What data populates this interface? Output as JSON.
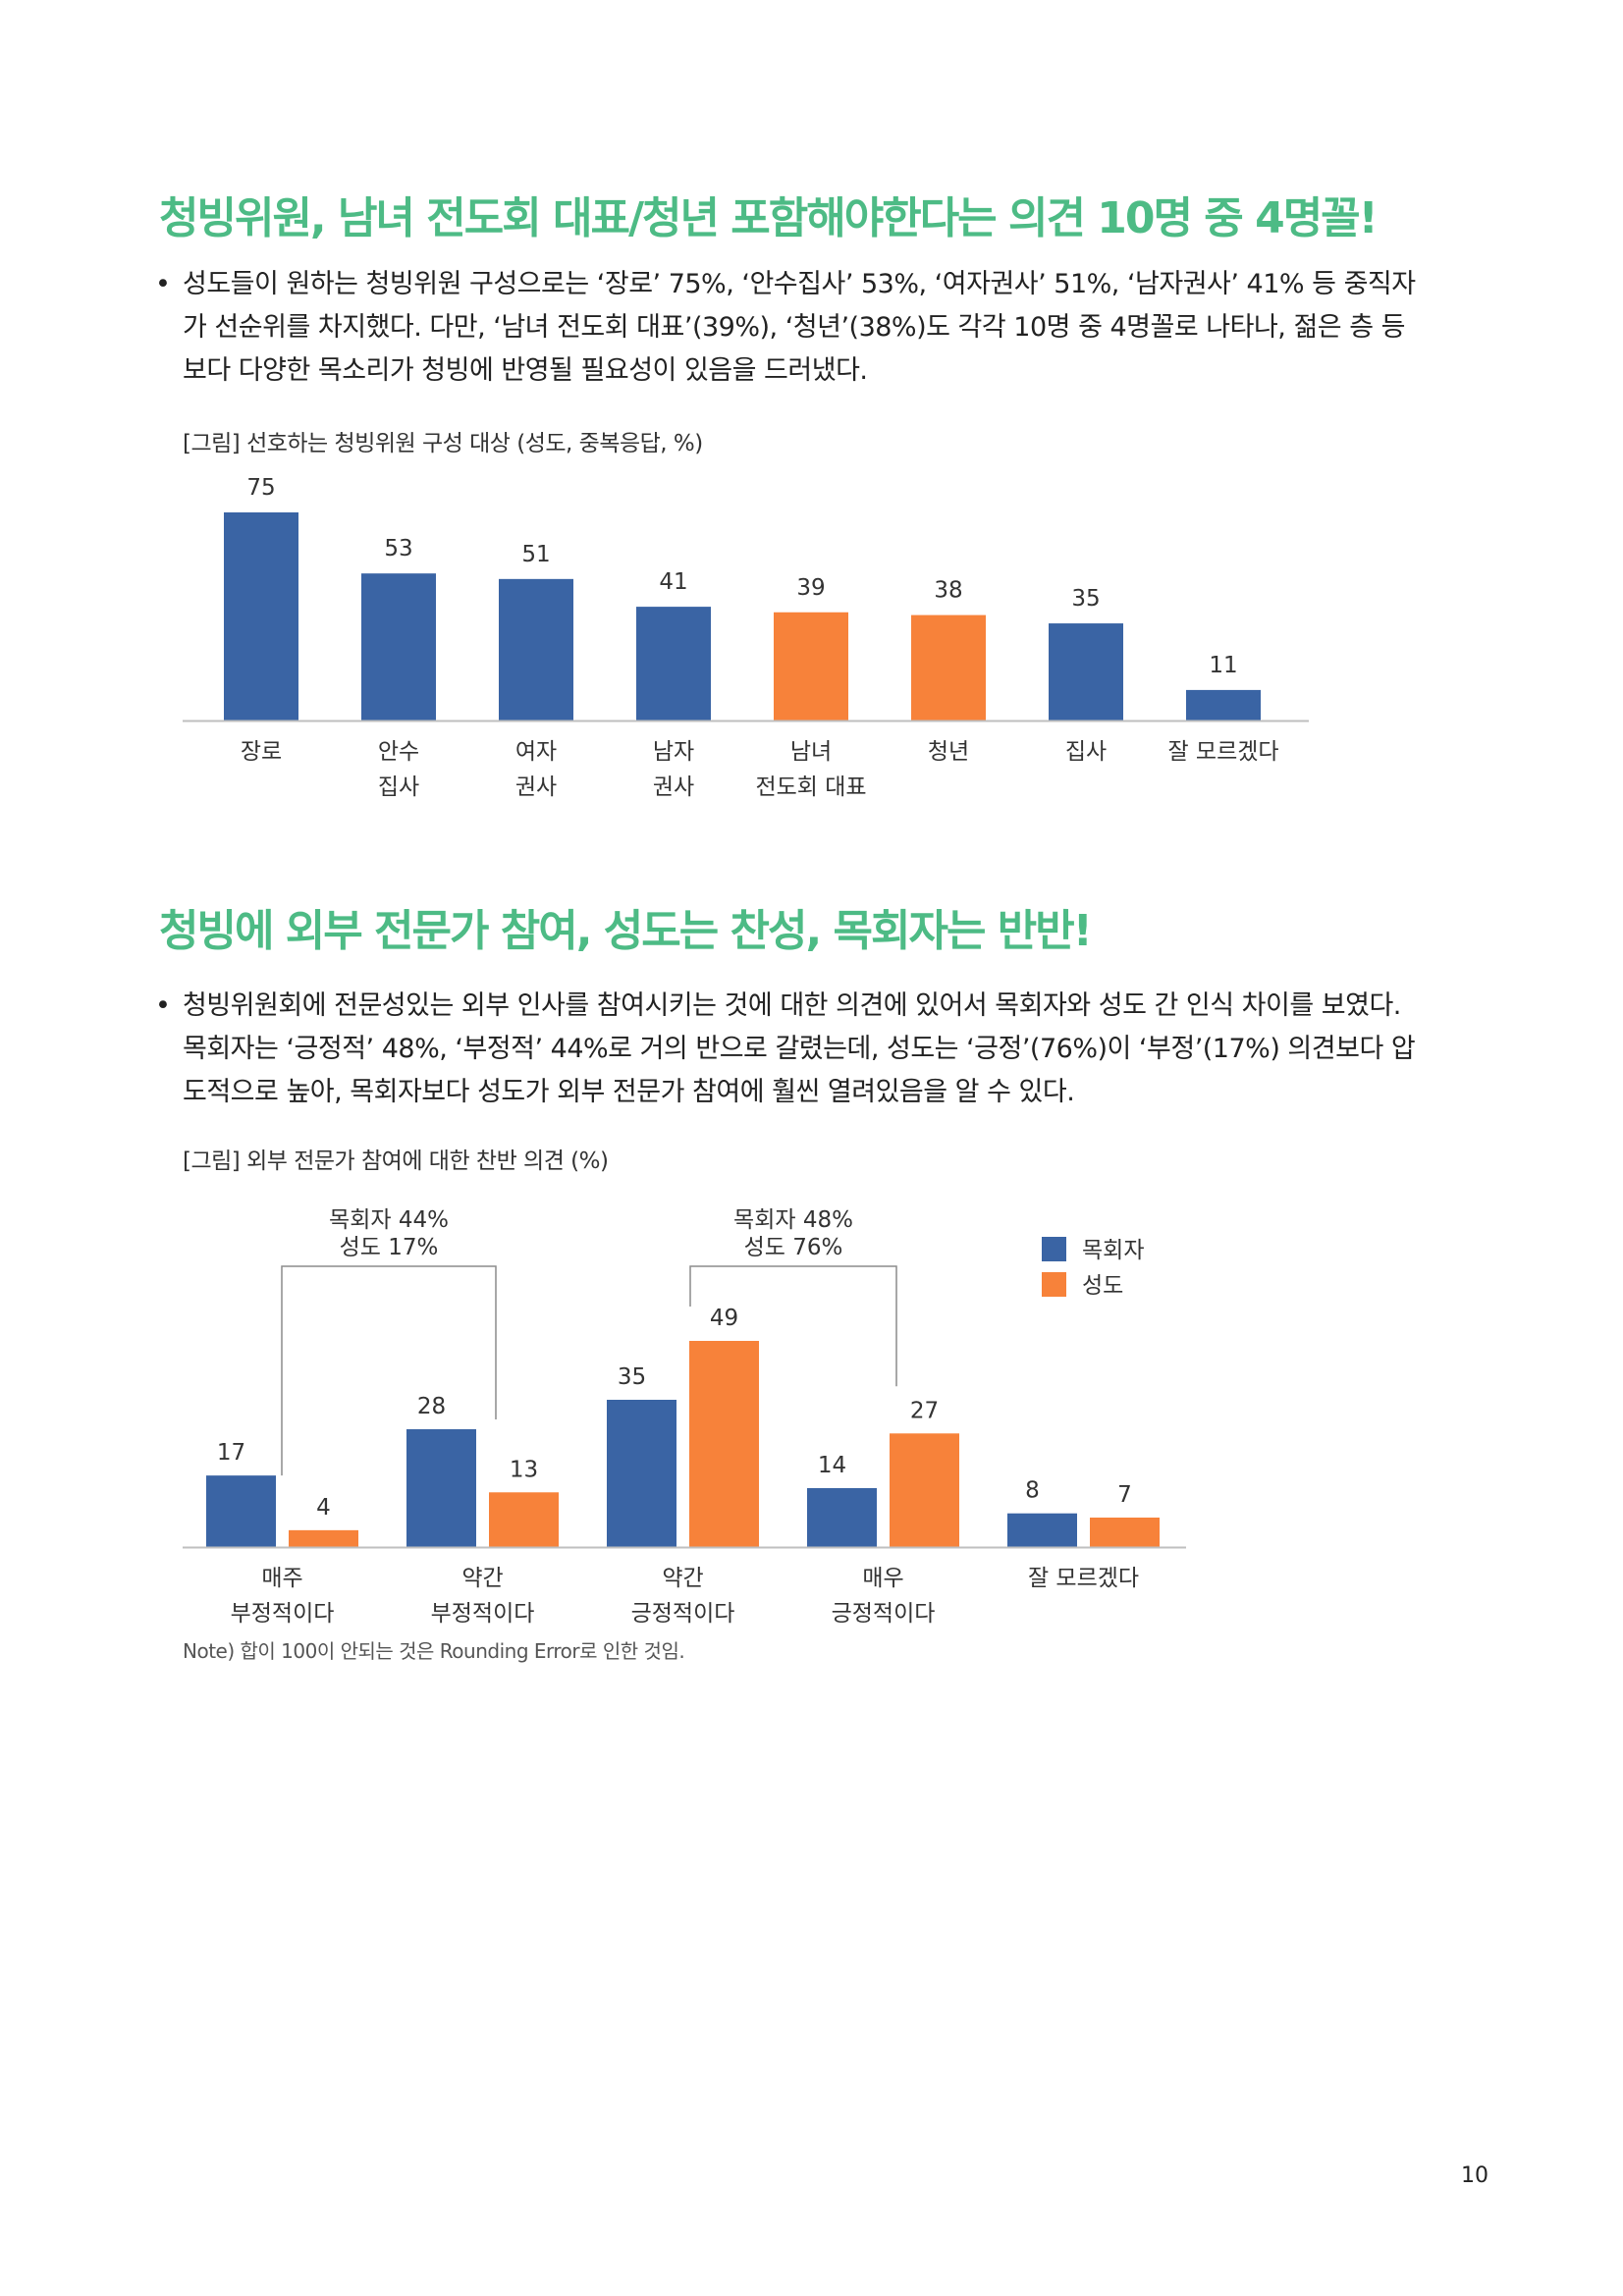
{
  "section1": {
    "heading": "청빙위원, 남녀 전도회 대표/청년 포함해야한다는 의견 10명 중 4명꼴!",
    "bullet_lines": [
      "성도들이 원하는 청빙위원 구성으로는 ‘장로’ 75%, ‘안수집사’ 53%, ‘여자권사’ 51%, ‘남자권사’ 41% 등 중직자",
      "가 선순위를 차지했다. 다만, ‘남녀 전도회 대표’(39%), ‘청년’(38%)도 각각 10명 중 4명꼴로 나타나, 젊은 층 등",
      "보다 다양한 목소리가 청빙에 반영될 필요성이 있음을 드러냈다."
    ],
    "caption": "[그림] 선호하는 청빙위원 구성 대상 (성도, 중복응답, %)"
  },
  "section2": {
    "heading": "청빙에 외부 전문가 참여, 성도는 찬성, 목회자는 반반!",
    "bullet_lines": [
      "청빙위원회에 전문성있는 외부 인사를 참여시키는 것에 대한 의견에 있어서 목회자와 성도 간 인식 차이를 보였다.",
      "목회자는 ‘긍정적’ 48%, ‘부정적’ 44%로 거의 반으로 갈렸는데, 성도는 ‘긍정’(76%)이 ‘부정’(17%) 의견보다 압",
      "도적으로 높아, 목회자보다 성도가 외부 전문가 참여에 훨씬 열려있음을 알 수 있다."
    ],
    "caption": "[그림] 외부 전문가 참여에 대한 찬반 의견 (%)"
  },
  "bullet_symbol": "•",
  "note": "Note) 합이 100이 안되는 것은 Rounding Error로 인한 것임.",
  "page_number": "10",
  "colors": {
    "heading": "#4dbb85",
    "blue": "#3a64a4",
    "orange": "#f7823a",
    "axis": "#bfbfbf",
    "bracket": "#8c8c8c"
  },
  "chart_data": [
    {
      "type": "bar",
      "categories": [
        [
          "장로"
        ],
        [
          "안수",
          "집사"
        ],
        [
          "여자",
          "권사"
        ],
        [
          "남자",
          "권사"
        ],
        [
          "남녀",
          "전도회 대표"
        ],
        [
          "청년"
        ],
        [
          "집사"
        ],
        [
          "잘 모르겠다"
        ]
      ],
      "values": [
        75,
        53,
        51,
        41,
        39,
        38,
        35,
        11
      ],
      "bar_colors": [
        "blue",
        "blue",
        "blue",
        "blue",
        "orange",
        "orange",
        "blue",
        "blue"
      ],
      "ylim": [
        0,
        75
      ]
    },
    {
      "type": "bar",
      "categories": [
        [
          "매주",
          "부정적이다"
        ],
        [
          "약간",
          "부정적이다"
        ],
        [
          "약간",
          "긍정적이다"
        ],
        [
          "매우",
          "긍정적이다"
        ],
        [
          "잘 모르겠다"
        ]
      ],
      "series": [
        {
          "name": "목회자",
          "values": [
            17,
            28,
            35,
            14,
            8
          ],
          "color": "blue"
        },
        {
          "name": "성도",
          "values": [
            4,
            13,
            49,
            27,
            7
          ],
          "color": "orange"
        }
      ],
      "legend": "top-right",
      "ylim": [
        0,
        49
      ],
      "annotations": [
        {
          "lines": [
            "목회자 44%",
            "성도 17%"
          ],
          "groups": [
            0,
            1
          ]
        },
        {
          "lines": [
            "목회자 48%",
            "성도 76%"
          ],
          "groups": [
            2,
            3
          ]
        }
      ]
    }
  ]
}
